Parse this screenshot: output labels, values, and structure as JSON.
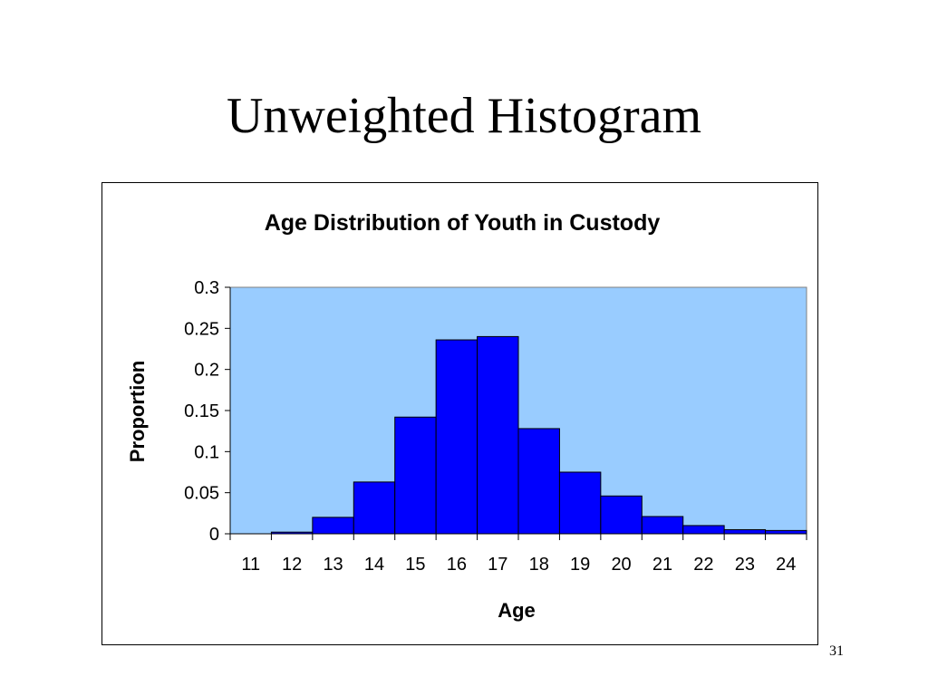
{
  "slide": {
    "title": "Unweighted Histogram",
    "page_number": "31"
  },
  "chart_data": {
    "type": "bar",
    "title": "Age Distribution of Youth in Custody",
    "xlabel": "Age",
    "ylabel": "Proportion",
    "categories": [
      "11",
      "12",
      "13",
      "14",
      "15",
      "16",
      "17",
      "18",
      "19",
      "20",
      "21",
      "22",
      "23",
      "24"
    ],
    "values": [
      0.0,
      0.002,
      0.02,
      0.063,
      0.142,
      0.236,
      0.24,
      0.128,
      0.075,
      0.046,
      0.021,
      0.01,
      0.005,
      0.004
    ],
    "ylim": [
      0,
      0.3
    ],
    "yticks": [
      "0",
      "0.05",
      "0.1",
      "0.15",
      "0.2",
      "0.25",
      "0.3"
    ],
    "grid": false,
    "legend": "none",
    "colors": {
      "plot_background": "#99ccff",
      "bar_fill": "#0000ff",
      "bar_stroke": "#000000"
    }
  }
}
